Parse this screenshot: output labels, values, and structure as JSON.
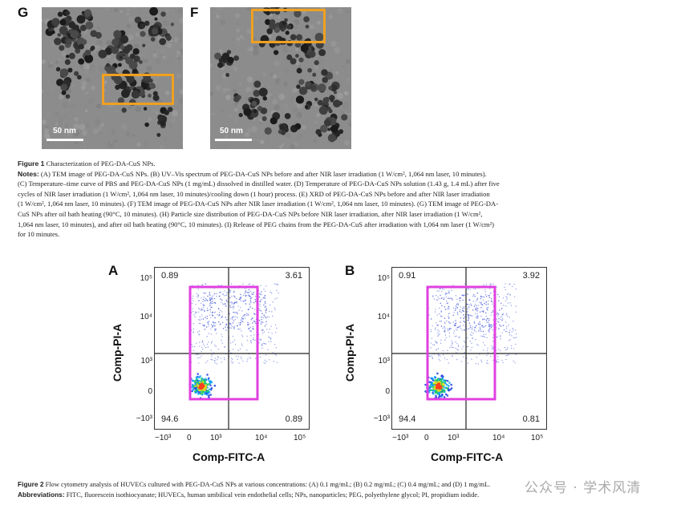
{
  "figure1": {
    "panels": [
      {
        "letter": "G",
        "scale_bar": "50 nm"
      },
      {
        "letter": "F",
        "scale_bar": "50 nm"
      }
    ],
    "caption_title_bold": "Figure 1",
    "caption_title": "Characterization of PEG-DA-CuS NPs.",
    "notes_label": "Notes:",
    "notes_lines": [
      "(A) TEM image of PEG-DA-CuS NPs. (B) UV–Vis spectrum of PEG-DA-CuS NPs before and after NIR laser irradiation (1 W/cm², 1,064 nm laser, 10 minutes).",
      "(C) Temperature–time curve of PBS and PEG-DA-CuS NPs (1 mg/mL) dissolved in distilled water. (D) Temperature of PEG-DA-CuS NPs solution (1.43 g, 1.4 mL) after five",
      "cycles of NIR laser irradiation (1 W/cm², 1,064 nm laser, 10 minutes)/cooling down (1 hour) process. (E) XRD of PEG-DA-CuS NPs before and after NIR laser irradiation",
      "(1 W/cm², 1,064 nm laser, 10 minutes). (F) TEM image of PEG-DA-CuS NPs after NIR laser irradiation (1 W/cm², 1,064 nm laser, 10 minutes). (G) TEM image of PEG-DA-",
      "CuS NPs after oil bath heating (90°C, 10 minutes). (H) Particle size distribution of PEG-DA-CuS NPs before NIR laser irradiation, after NIR laser irradiation (1 W/cm²,",
      "1,064 nm laser, 10 minutes), and after oil bath heating (90°C, 10 minutes). (I) Release of PEG chains from the PEG-DA-CuS after irradiation with 1,064 nm laser (1 W/cm²)",
      "for 10 minutes."
    ]
  },
  "figure2": {
    "plots": [
      {
        "letter": "A",
        "ylabel": "Comp-PI-A",
        "xlabel": "Comp-FITC-A",
        "quadrants": {
          "ul": "0.89",
          "ur": "3.61",
          "ll": "94.6",
          "lr": "0.89"
        }
      },
      {
        "letter": "B",
        "ylabel": "Comp-PI-A",
        "xlabel": "Comp-FITC-A",
        "quadrants": {
          "ul": "0.91",
          "ur": "3.92",
          "ll": "94.4",
          "lr": "0.81"
        }
      }
    ],
    "y_ticks": [
      "10⁵",
      "10⁴",
      "10³",
      "0",
      "−10³"
    ],
    "x_ticks": [
      "−10³",
      "0",
      "10³",
      "10⁴",
      "10⁵"
    ],
    "caption_bold": "Figure 2",
    "caption": "Flow cytometry analysis of HUVECs cultured with PEG-DA-CuS NPs at various concentrations: (A) 0.1 mg/mL; (B) 0.2 mg/mL; (C) 0.4 mg/mL; and (D) 1 mg/mL.",
    "abbrev_label": "Abbreviations:",
    "abbrev": "FITC, fluorescein isothiocyanate; HUVECs, human umbilical vein endothelial cells; NPs, nanoparticles; PEG, polyethylene glycol; PI, propidium iodide."
  },
  "watermark": "公众号 · 学术风清",
  "colors": {
    "highlight_orange": "#f0a020",
    "gate_magenta": "#e040e0",
    "dot_blue": "#3a50d8"
  }
}
